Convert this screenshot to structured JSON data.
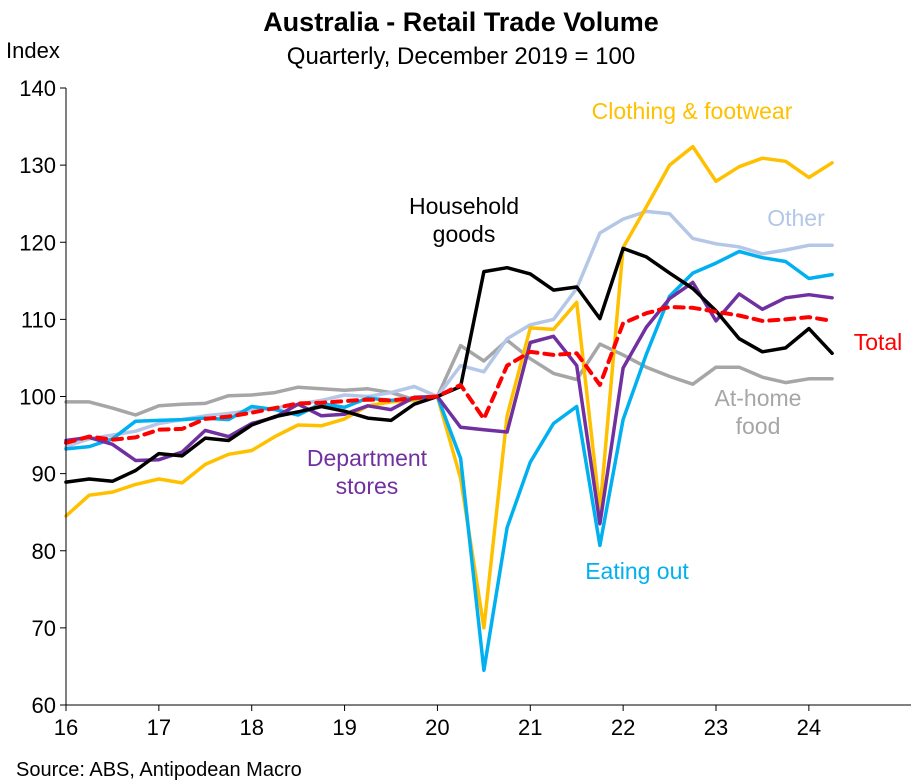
{
  "chart_data": {
    "type": "line",
    "title": "Australia - Retail Trade Volume",
    "subtitle": "Quarterly, December 2019 = 100",
    "ylabel": "Index",
    "ylim": [
      60,
      140
    ],
    "yticks": [
      60,
      70,
      80,
      90,
      100,
      110,
      120,
      130,
      140
    ],
    "xlim": [
      16,
      25.1
    ],
    "xticks": [
      16,
      17,
      18,
      19,
      20,
      21,
      22,
      23,
      24
    ],
    "xtick_labels": [
      "16",
      "17",
      "18",
      "19",
      "20",
      "21",
      "22",
      "23",
      "24"
    ],
    "source": "Source: ABS, Antipodean Macro",
    "x": [
      16,
      16.25,
      16.5,
      16.75,
      17,
      17.25,
      17.5,
      17.75,
      18,
      18.25,
      18.5,
      18.75,
      19,
      19.25,
      19.5,
      19.75,
      20,
      20.25,
      20.5,
      20.75,
      21,
      21.25,
      21.5,
      21.75,
      22,
      22.25,
      22.5,
      22.75,
      23,
      23.25,
      23.5,
      23.75,
      24,
      24.25
    ],
    "series": [
      {
        "name": "At-home food",
        "label": [
          "At-home",
          "food"
        ],
        "color": "#A6A6A6",
        "dashed": false,
        "values": [
          99.3,
          99.3,
          98.5,
          97.6,
          98.8,
          99.0,
          99.1,
          100.1,
          100.2,
          100.5,
          101.2,
          101.0,
          100.8,
          101.0,
          100.5,
          99.6,
          100.0,
          106.6,
          104.6,
          107.3,
          104.9,
          103.0,
          102.2,
          106.8,
          105.4,
          103.8,
          102.6,
          101.6,
          103.8,
          103.8,
          102.5,
          101.8,
          102.3,
          102.3
        ]
      },
      {
        "name": "Other",
        "label": [
          "Other"
        ],
        "color": "#B4C7E7",
        "dashed": false,
        "values": [
          93.5,
          94.5,
          95.0,
          95.5,
          96.5,
          97.0,
          97.5,
          97.8,
          98.2,
          98.5,
          99.0,
          99.5,
          100.2,
          100.0,
          100.5,
          101.3,
          100.0,
          104.0,
          103.2,
          107.5,
          109.3,
          110.0,
          114.0,
          121.2,
          123.0,
          124.0,
          123.7,
          120.5,
          119.8,
          119.4,
          118.5,
          119.0,
          119.6,
          119.6
        ]
      },
      {
        "name": "Clothing & footwear",
        "label": [
          "Clothing & footwear"
        ],
        "color": "#FFC000",
        "dashed": false,
        "values": [
          84.5,
          87.2,
          87.6,
          88.6,
          89.3,
          88.8,
          91.2,
          92.5,
          93.0,
          94.8,
          96.3,
          96.2,
          97.1,
          98.8,
          99.3,
          99.5,
          100.0,
          89.4,
          70.0,
          97.5,
          108.9,
          108.7,
          112.2,
          85.2,
          119.3,
          124.6,
          130.0,
          132.4,
          127.9,
          129.8,
          130.9,
          130.5,
          128.4,
          130.3
        ]
      },
      {
        "name": "Eating out",
        "label": [
          "Eating out"
        ],
        "color": "#00B0F0",
        "dashed": false,
        "values": [
          93.2,
          93.5,
          94.5,
          96.8,
          96.9,
          97.0,
          97.2,
          97.0,
          98.7,
          98.3,
          97.6,
          99.1,
          98.6,
          99.8,
          99.5,
          99.7,
          100.0,
          92.0,
          64.5,
          83.0,
          91.5,
          96.5,
          98.7,
          80.7,
          97.0,
          105.5,
          113.0,
          116.0,
          117.3,
          118.8,
          118.0,
          117.5,
          115.3,
          115.8
        ]
      },
      {
        "name": "Department stores",
        "label": [
          "Department",
          "stores"
        ],
        "color": "#7030A0",
        "dashed": false,
        "values": [
          94.3,
          94.7,
          93.8,
          91.7,
          91.8,
          92.8,
          95.6,
          94.8,
          96.5,
          97.3,
          99.0,
          97.5,
          97.7,
          98.8,
          98.3,
          99.9,
          100.0,
          96.0,
          95.7,
          95.4,
          107.0,
          107.8,
          104.0,
          83.5,
          103.7,
          109.0,
          112.7,
          114.8,
          109.8,
          113.3,
          111.3,
          112.8,
          113.2,
          112.8
        ]
      },
      {
        "name": "Household goods",
        "label": [
          "Household",
          "goods"
        ],
        "color": "#000000",
        "dashed": false,
        "values": [
          88.9,
          89.3,
          89.0,
          90.4,
          92.6,
          92.3,
          94.6,
          94.3,
          96.3,
          97.4,
          98.0,
          98.7,
          98.1,
          97.2,
          96.9,
          99.0,
          100.0,
          101.3,
          116.2,
          116.7,
          115.9,
          113.8,
          114.2,
          110.1,
          119.2,
          118.1,
          116.0,
          114.0,
          111.1,
          107.5,
          105.8,
          106.3,
          108.8,
          105.6
        ]
      },
      {
        "name": "Total",
        "label": [
          "Total"
        ],
        "color": "#FF0000",
        "dashed": true,
        "values": [
          94.0,
          94.8,
          94.4,
          94.7,
          95.7,
          95.8,
          97.1,
          97.4,
          97.9,
          98.5,
          99.1,
          99.2,
          99.4,
          99.6,
          99.5,
          99.8,
          100.0,
          101.5,
          97.1,
          104.0,
          105.8,
          105.4,
          105.6,
          101.5,
          109.5,
          110.8,
          111.6,
          111.5,
          111.0,
          110.5,
          109.8,
          110.0,
          110.3,
          109.8
        ]
      }
    ]
  }
}
